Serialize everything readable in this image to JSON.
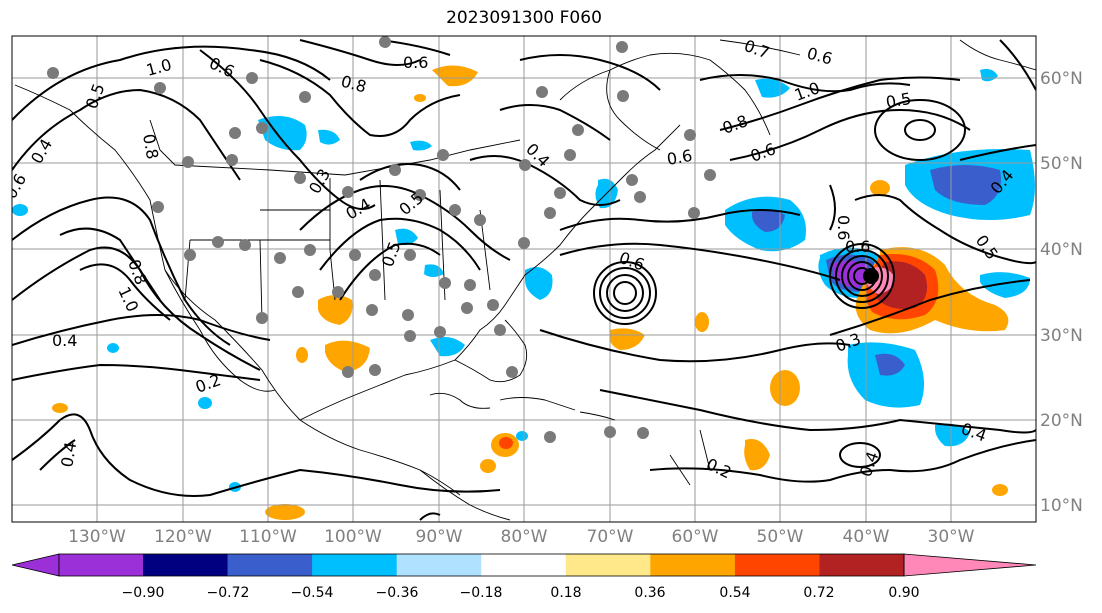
{
  "title": "2023091300 F060",
  "lat_labels": [
    "60°N",
    "50°N",
    "40°N",
    "30°N",
    "20°N",
    "10°N"
  ],
  "lon_labels": [
    "130°W",
    "120°W",
    "110°W",
    "100°W",
    "90°W",
    "80°W",
    "70°W",
    "60°W",
    "50°W",
    "40°W",
    "30°W"
  ],
  "contour_labels": [
    "1.0",
    "0.5",
    "0.4",
    "0.6",
    "0.8",
    "0.8",
    "1.0",
    "0.4",
    "0.2",
    "0.3",
    "0.4",
    "0.5",
    "0.4",
    "0.6",
    "0.5",
    "0.6",
    "0.6",
    "0.6",
    "1.0",
    "0.8",
    "0.7",
    "0.6",
    "0.5",
    "0.4",
    "0.5",
    "0.6",
    "0.3",
    "0.4",
    "0.4",
    "0.2",
    "0.4",
    "0.8",
    "0.6",
    "0.6"
  ],
  "colorbar": {
    "ticks": [
      "−0.90",
      "−0.72",
      "−0.54",
      "−0.36",
      "−0.18",
      "0.18",
      "0.36",
      "0.54",
      "0.72",
      "0.90"
    ],
    "colors": [
      "#9b30d9",
      "#000080",
      "#3a5fcd",
      "#00bfff",
      "#b0e2ff",
      "#ffffff",
      "#ffe88a",
      "#ffa500",
      "#ff4500",
      "#b22222",
      "#ff88b8"
    ]
  }
}
